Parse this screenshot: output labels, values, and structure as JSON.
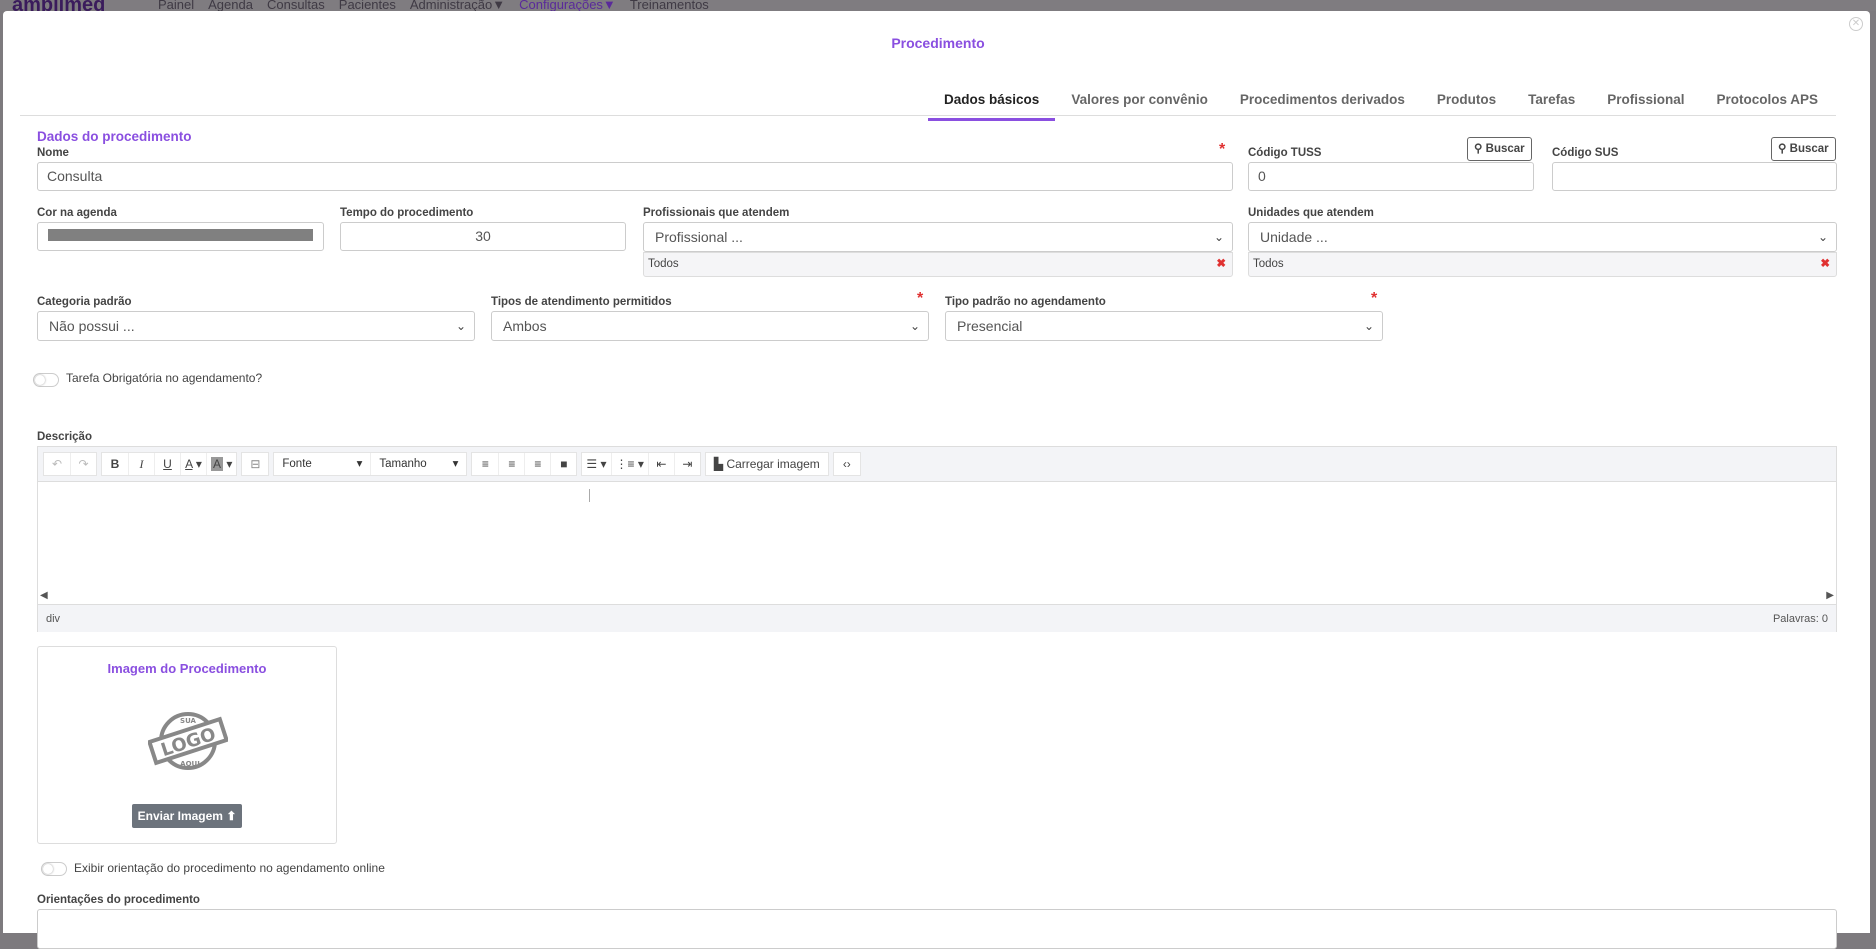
{
  "topnav": {
    "brand": "amplimed",
    "items": [
      "Painel",
      "Agenda",
      "Consultas",
      "Pacientes",
      "Administração▼",
      "Configurações▼",
      "Treinamentos"
    ],
    "active": "Configurações▼"
  },
  "modal": {
    "title": "Procedimento",
    "close_icon": "close-circle-icon"
  },
  "tabs": [
    "Dados básicos",
    "Valores por convênio",
    "Procedimentos derivados",
    "Produtos",
    "Tarefas",
    "Profissional",
    "Protocolos APS"
  ],
  "active_tab": "Dados básicos",
  "section_title": "Dados do procedimento",
  "fields": {
    "nome": {
      "label": "Nome",
      "value": "Consulta",
      "required": true
    },
    "tuss": {
      "label": "Código TUSS",
      "value": "0",
      "search": "Buscar"
    },
    "sus": {
      "label": "Código SUS",
      "value": "",
      "search": "Buscar"
    },
    "cor": {
      "label": "Cor na agenda",
      "value": "#808080"
    },
    "tempo": {
      "label": "Tempo do procedimento",
      "value": "30"
    },
    "profissionais": {
      "label": "Profissionais que atendem",
      "placeholder": "Profissional ...",
      "tag": "Todos"
    },
    "unidades": {
      "label": "Unidades que atendem",
      "placeholder": "Unidade ...",
      "tag": "Todos"
    },
    "categoria": {
      "label": "Categoria padrão",
      "value": "Não possui ..."
    },
    "tipos": {
      "label": "Tipos de atendimento permitidos",
      "value": "Ambos",
      "required": true
    },
    "tipo_padrao": {
      "label": "Tipo padrão no agendamento",
      "value": "Presencial",
      "required": true
    }
  },
  "toggle_tarefa": {
    "label": "Tarefa Obrigatória no agendamento?",
    "on": false
  },
  "descricao": {
    "label": "Descrição",
    "font": "Fonte",
    "size": "Tamanho",
    "upload": "Carregar imagem",
    "path": "div",
    "words": "Palavras: 0"
  },
  "imagem": {
    "title": "Imagem do Procedimento",
    "logo_text": "SUA LOGO AQUI",
    "button": "Enviar Imagem"
  },
  "toggle_orientacao": {
    "label": "Exibir orientação do procedimento no agendamento online",
    "on": false
  },
  "orientacoes": {
    "label": "Orientações do procedimento",
    "value": ""
  },
  "colors": {
    "accent": "#8a4fe0",
    "required": "#e03131"
  }
}
